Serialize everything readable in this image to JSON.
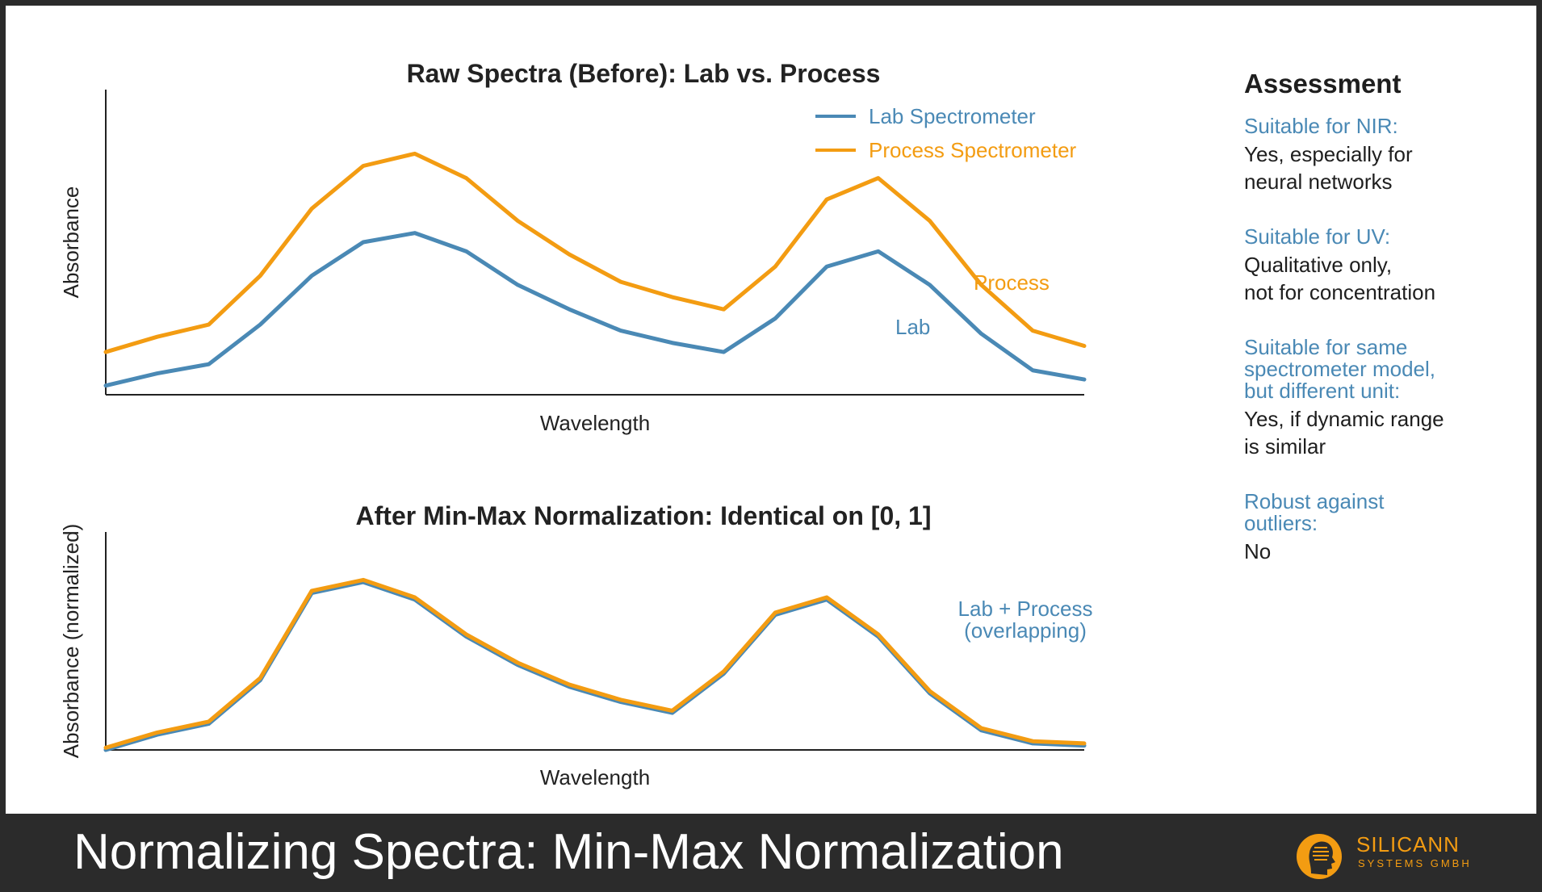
{
  "footer": {
    "title": "Normalizing Spectra: Min-Max Normalization",
    "logo_name": "SILICANN",
    "logo_sub": "SYSTEMS GMBH"
  },
  "colors": {
    "lab": "#4a89b5",
    "process": "#f39c12"
  },
  "chart_data": [
    {
      "type": "line",
      "title": "Raw Spectra (Before): Lab vs. Process",
      "xlabel": "Wavelength",
      "ylabel": "Absorbance",
      "x": [
        1,
        2,
        3,
        4,
        5,
        6,
        7,
        8,
        9,
        10,
        11,
        12,
        13,
        14,
        15,
        16,
        17,
        18,
        19,
        20
      ],
      "xlim": [
        1,
        20
      ],
      "ylim": [
        0,
        1
      ],
      "grid": false,
      "legend": "top-right",
      "series": [
        {
          "name": "Lab Spectrometer",
          "color": "#4a89b5",
          "values": [
            0.03,
            0.07,
            0.1,
            0.23,
            0.39,
            0.5,
            0.53,
            0.47,
            0.36,
            0.28,
            0.21,
            0.17,
            0.14,
            0.25,
            0.42,
            0.47,
            0.36,
            0.2,
            0.08,
            0.05
          ]
        },
        {
          "name": "Process Spectrometer",
          "color": "#f39c12",
          "values": [
            0.14,
            0.19,
            0.23,
            0.39,
            0.61,
            0.75,
            0.79,
            0.71,
            0.57,
            0.46,
            0.37,
            0.32,
            0.28,
            0.42,
            0.64,
            0.71,
            0.57,
            0.36,
            0.21,
            0.16
          ]
        }
      ],
      "annotations": [
        {
          "text": "Process",
          "color": "#f39c12"
        },
        {
          "text": "Lab",
          "color": "#4a89b5"
        }
      ]
    },
    {
      "type": "line",
      "title": "After Min-Max Normalization: Identical on [0, 1]",
      "xlabel": "Wavelength",
      "ylabel": "Absorbance (normalized)",
      "x": [
        1,
        2,
        3,
        4,
        5,
        6,
        7,
        8,
        9,
        10,
        11,
        12,
        13,
        14,
        15,
        16,
        17,
        18,
        19,
        20
      ],
      "xlim": [
        1,
        20
      ],
      "ylim": [
        0,
        1
      ],
      "grid": false,
      "series": [
        {
          "name": "Lab",
          "color": "#4a89b5",
          "values": [
            0.0,
            0.07,
            0.12,
            0.32,
            0.72,
            0.77,
            0.69,
            0.52,
            0.39,
            0.29,
            0.22,
            0.17,
            0.35,
            0.62,
            0.69,
            0.52,
            0.26,
            0.09,
            0.03,
            0.02
          ]
        },
        {
          "name": "Process",
          "color": "#f39c12",
          "values": [
            0.01,
            0.08,
            0.13,
            0.33,
            0.73,
            0.78,
            0.7,
            0.53,
            0.4,
            0.3,
            0.23,
            0.18,
            0.36,
            0.63,
            0.7,
            0.53,
            0.27,
            0.1,
            0.04,
            0.03
          ]
        }
      ],
      "annotations": [
        {
          "text": "Lab + Process",
          "color": "#4a89b5"
        },
        {
          "text": "(overlapping)",
          "color": "#4a89b5"
        }
      ]
    }
  ],
  "assessment": {
    "title": "Assessment",
    "items": [
      {
        "question": [
          "Suitable for NIR:"
        ],
        "answer": [
          "Yes, especially for",
          "neural networks"
        ]
      },
      {
        "question": [
          "Suitable for UV:"
        ],
        "answer": [
          "Qualitative only,",
          "not for concentration"
        ]
      },
      {
        "question": [
          "Suitable for same",
          "spectrometer model,",
          "but different unit:"
        ],
        "answer": [
          "Yes, if dynamic range",
          "is similar"
        ]
      },
      {
        "question": [
          "Robust against",
          "outliers:"
        ],
        "answer": [
          "No"
        ]
      }
    ]
  }
}
